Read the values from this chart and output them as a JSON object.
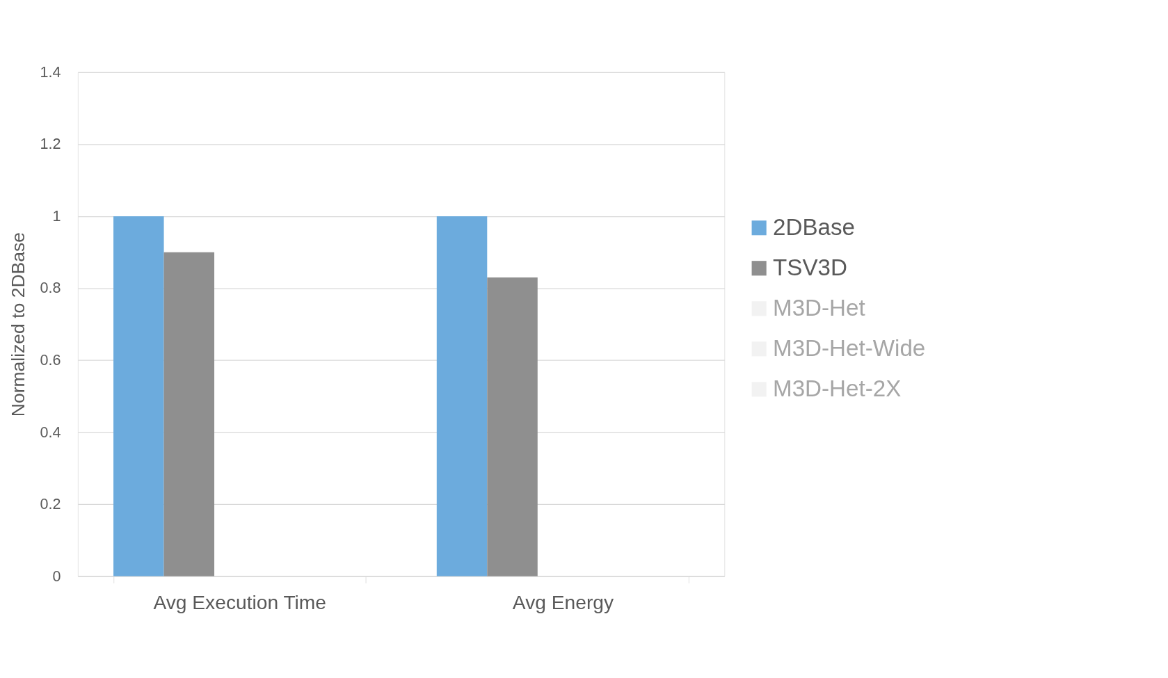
{
  "chart_data": {
    "type": "bar",
    "ylabel": "Normalized to 2DBase",
    "categories": [
      "Avg Execution Time",
      "Avg Energy"
    ],
    "series": [
      {
        "name": "2DBase",
        "color": "#6cabdd",
        "values": [
          1,
          1
        ]
      },
      {
        "name": "TSV3D",
        "color": "#8f8f8f",
        "values": [
          0.9,
          0.83
        ]
      },
      {
        "name": "M3D-Het",
        "color": "#f2f2f2",
        "values": [
          null,
          null
        ]
      },
      {
        "name": "M3D-Het-Wide",
        "color": "#f2f2f2",
        "values": [
          null,
          null
        ]
      },
      {
        "name": "M3D-Het-2X",
        "color": "#f2f2f2",
        "values": [
          null,
          null
        ]
      }
    ],
    "ylim": [
      0,
      1.4
    ],
    "yticks": [
      0,
      0.2,
      0.4,
      0.6,
      0.8,
      1,
      1.2,
      1.4
    ],
    "grid": "y",
    "legend": "right"
  }
}
